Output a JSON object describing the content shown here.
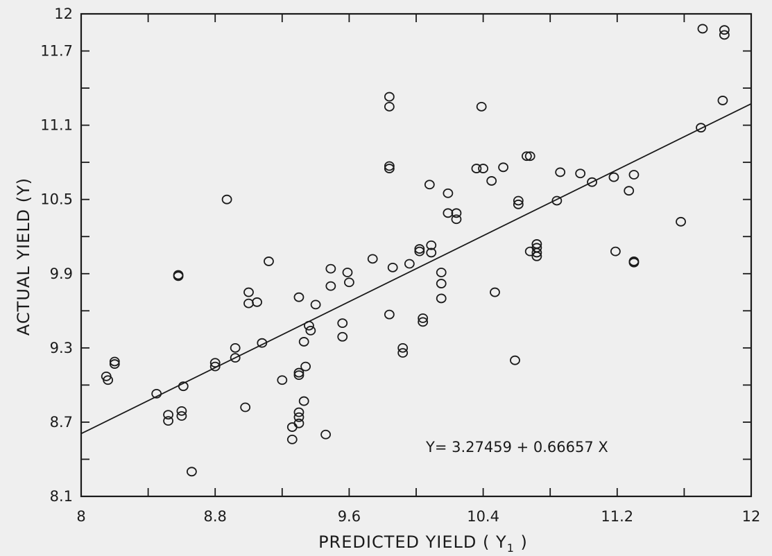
{
  "chart_data": {
    "type": "scatter",
    "title": "",
    "xlabel": "PREDICTED YIELD (",
    "xlabel_symbol": "Y",
    "xlabel_subscript": "1",
    "xlabel_close": ")",
    "ylabel": "ACTUAL  YIELD (Y)",
    "xlim": [
      8,
      12
    ],
    "ylim": [
      8.1,
      12
    ],
    "x_ticks": [
      "8",
      "8.8",
      "9.6",
      "10.4",
      "11.2",
      "12"
    ],
    "y_ticks": [
      "8.1",
      "8.7",
      "9.3",
      "9.9",
      "10.5",
      "11.1",
      "11.7",
      "12"
    ],
    "grid": false,
    "colors": {
      "ink": "#1a1a1a",
      "background": "#efefef"
    },
    "regression": {
      "intercept": 3.27459,
      "slope": 0.66657,
      "label": "Y= 3.27459 + 0.66657 X"
    },
    "points": [
      [
        8.15,
        9.07
      ],
      [
        8.16,
        9.04
      ],
      [
        8.2,
        9.19
      ],
      [
        8.2,
        9.17
      ],
      [
        8.45,
        8.93
      ],
      [
        8.52,
        8.76
      ],
      [
        8.52,
        8.71
      ],
      [
        8.58,
        9.89
      ],
      [
        8.58,
        9.88
      ],
      [
        8.61,
        8.99
      ],
      [
        8.6,
        8.79
      ],
      [
        8.6,
        8.75
      ],
      [
        8.66,
        8.3
      ],
      [
        8.8,
        9.18
      ],
      [
        8.8,
        9.15
      ],
      [
        8.87,
        10.5
      ],
      [
        8.92,
        9.3
      ],
      [
        8.92,
        9.22
      ],
      [
        8.98,
        8.82
      ],
      [
        9.0,
        9.75
      ],
      [
        9.0,
        9.66
      ],
      [
        9.05,
        9.67
      ],
      [
        9.08,
        9.34
      ],
      [
        9.12,
        10.0
      ],
      [
        9.2,
        9.04
      ],
      [
        9.26,
        8.66
      ],
      [
        9.26,
        8.56
      ],
      [
        9.3,
        9.71
      ],
      [
        9.3,
        9.1
      ],
      [
        9.3,
        9.08
      ],
      [
        9.3,
        8.78
      ],
      [
        9.3,
        8.74
      ],
      [
        9.3,
        8.69
      ],
      [
        9.33,
        8.87
      ],
      [
        9.33,
        9.35
      ],
      [
        9.34,
        9.15
      ],
      [
        9.36,
        9.48
      ],
      [
        9.37,
        9.44
      ],
      [
        9.4,
        9.65
      ],
      [
        9.46,
        8.6
      ],
      [
        9.49,
        9.94
      ],
      [
        9.49,
        9.8
      ],
      [
        9.56,
        9.5
      ],
      [
        9.56,
        9.39
      ],
      [
        9.59,
        9.91
      ],
      [
        9.6,
        9.83
      ],
      [
        9.74,
        10.02
      ],
      [
        9.84,
        11.33
      ],
      [
        9.84,
        11.25
      ],
      [
        9.84,
        10.77
      ],
      [
        9.84,
        10.75
      ],
      [
        9.84,
        9.57
      ],
      [
        9.86,
        9.95
      ],
      [
        9.92,
        9.3
      ],
      [
        9.92,
        9.26
      ],
      [
        9.96,
        9.98
      ],
      [
        10.02,
        10.1
      ],
      [
        10.02,
        10.08
      ],
      [
        10.04,
        9.54
      ],
      [
        10.04,
        9.51
      ],
      [
        10.08,
        10.62
      ],
      [
        10.09,
        10.13
      ],
      [
        10.09,
        10.07
      ],
      [
        10.15,
        9.91
      ],
      [
        10.15,
        9.82
      ],
      [
        10.15,
        9.7
      ],
      [
        10.19,
        10.55
      ],
      [
        10.19,
        10.39
      ],
      [
        10.24,
        10.39
      ],
      [
        10.24,
        10.34
      ],
      [
        10.36,
        10.75
      ],
      [
        10.39,
        11.25
      ],
      [
        10.4,
        10.75
      ],
      [
        10.45,
        10.65
      ],
      [
        10.47,
        9.75
      ],
      [
        10.52,
        10.76
      ],
      [
        10.59,
        9.2
      ],
      [
        10.61,
        10.49
      ],
      [
        10.61,
        10.46
      ],
      [
        10.66,
        10.85
      ],
      [
        10.68,
        10.85
      ],
      [
        10.68,
        10.08
      ],
      [
        10.72,
        10.14
      ],
      [
        10.72,
        10.11
      ],
      [
        10.72,
        10.07
      ],
      [
        10.72,
        10.04
      ],
      [
        10.84,
        10.49
      ],
      [
        10.86,
        10.72
      ],
      [
        10.98,
        10.71
      ],
      [
        11.05,
        10.64
      ],
      [
        11.18,
        10.68
      ],
      [
        11.19,
        10.08
      ],
      [
        11.27,
        10.57
      ],
      [
        11.3,
        10.0
      ],
      [
        11.3,
        9.99
      ],
      [
        11.3,
        10.7
      ],
      [
        11.58,
        10.32
      ],
      [
        11.7,
        11.08
      ],
      [
        11.71,
        11.88
      ],
      [
        11.84,
        11.87
      ],
      [
        11.84,
        11.83
      ],
      [
        11.83,
        11.3
      ]
    ]
  }
}
